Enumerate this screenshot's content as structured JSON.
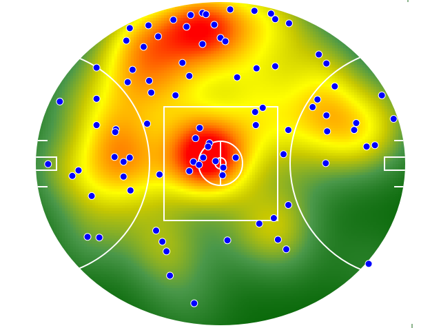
{
  "chart_data": {
    "type": "scatter",
    "overlay": "heatmap",
    "title": "",
    "xlabel": "",
    "ylabel": "",
    "field": "AFL oval",
    "xlim": [
      -80,
      80
    ],
    "ylim": [
      -70,
      70
    ],
    "grid": false,
    "legend": "none",
    "colors": {
      "point_fill": "#0000ff",
      "point_stroke": "#ffffff",
      "markings": "#ffffff",
      "heat_low": "#086808",
      "heat_mid": "#ffff00",
      "heat_high": "#ff0000"
    },
    "points": [
      [
        -39.3,
        58.7
      ],
      [
        -31.2,
        59.9
      ],
      [
        -40.8,
        53.3
      ],
      [
        -27.0,
        55.1
      ],
      [
        -33.3,
        50.6
      ],
      [
        -20.4,
        62.3
      ],
      [
        -12.9,
        64.4
      ],
      [
        -7.8,
        65.3
      ],
      [
        -6.3,
        64.7
      ],
      [
        -14.7,
        59.3
      ],
      [
        -2.7,
        60.2
      ],
      [
        4.2,
        66.8
      ],
      [
        14.7,
        66.2
      ],
      [
        21.9,
        65.0
      ],
      [
        23.7,
        62.6
      ],
      [
        29.7,
        60.8
      ],
      [
        0.0,
        54.5
      ],
      [
        2.1,
        53.0
      ],
      [
        -7.8,
        51.8
      ],
      [
        -16.5,
        43.7
      ],
      [
        -38.1,
        40.7
      ],
      [
        -53.7,
        41.6
      ],
      [
        -40.2,
        35.3
      ],
      [
        -30.9,
        35.9
      ],
      [
        -30.0,
        30.8
      ],
      [
        -19.5,
        29.6
      ],
      [
        -13.5,
        38.0
      ],
      [
        7.2,
        37.4
      ],
      [
        15.6,
        41.3
      ],
      [
        23.7,
        42.2
      ],
      [
        42.6,
        47.3
      ],
      [
        45.9,
        43.4
      ],
      [
        49.5,
        33.5
      ],
      [
        42.0,
        27.8
      ],
      [
        39.9,
        24.5
      ],
      [
        45.9,
        20.9
      ],
      [
        69.9,
        29.6
      ],
      [
        75.0,
        19.4
      ],
      [
        58.8,
        17.6
      ],
      [
        57.9,
        14.6
      ],
      [
        46.2,
        14.0
      ],
      [
        63.3,
        7.4
      ],
      [
        66.9,
        8.0
      ],
      [
        45.6,
        0.2
      ],
      [
        -69.6,
        26.9
      ],
      [
        -53.7,
        28.1
      ],
      [
        -53.7,
        16.7
      ],
      [
        -45.3,
        14.9
      ],
      [
        -45.6,
        13.7
      ],
      [
        -31.8,
        17.3
      ],
      [
        -45.9,
        2.9
      ],
      [
        -42.0,
        0.8
      ],
      [
        -39.3,
        2.6
      ],
      [
        -74.7,
        -0.2
      ],
      [
        -61.5,
        -2.9
      ],
      [
        -64.2,
        -5.3
      ],
      [
        -42.0,
        -5.6
      ],
      [
        -39.0,
        -11.6
      ],
      [
        -55.8,
        -14.0
      ],
      [
        -26.4,
        -4.7
      ],
      [
        15.0,
        22.4
      ],
      [
        18.3,
        24.2
      ],
      [
        15.3,
        16.7
      ],
      [
        29.4,
        14.6
      ],
      [
        -9.0,
        15.5
      ],
      [
        -10.8,
        11.0
      ],
      [
        -4.8,
        8.9
      ],
      [
        -5.4,
        7.4
      ],
      [
        -7.5,
        2.6
      ],
      [
        -11.7,
        0.8
      ],
      [
        -9.3,
        -0.5
      ],
      [
        -2.1,
        1.1
      ],
      [
        6.6,
        2.6
      ],
      [
        1.2,
        -1.7
      ],
      [
        0.9,
        -5.0
      ],
      [
        -13.5,
        -3.2
      ],
      [
        27.3,
        4.1
      ],
      [
        29.4,
        -17.9
      ],
      [
        23.1,
        -23.6
      ],
      [
        16.8,
        -26.0
      ],
      [
        -57.6,
        -31.7
      ],
      [
        -52.5,
        -32.0
      ],
      [
        -27.9,
        -29.0
      ],
      [
        -25.2,
        -33.8
      ],
      [
        -23.4,
        -38.0
      ],
      [
        3.0,
        -33.2
      ],
      [
        24.9,
        -32.9
      ],
      [
        28.5,
        -37.1
      ],
      [
        -21.9,
        -48.5
      ],
      [
        -11.4,
        -60.5
      ],
      [
        64.2,
        -43.4
      ]
    ]
  }
}
